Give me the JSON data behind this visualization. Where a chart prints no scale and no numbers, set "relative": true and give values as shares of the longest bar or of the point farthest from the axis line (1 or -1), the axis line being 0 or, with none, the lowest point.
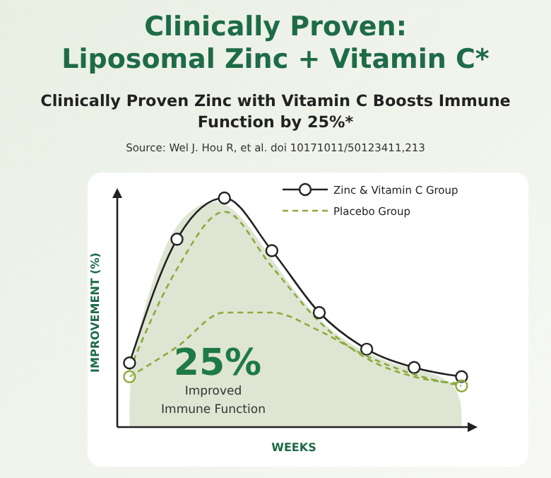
{
  "chart_data": {
    "type": "line",
    "title": "Clinically Proven:\nLiposomal Zinc + Vitamin C*",
    "subtitle": "Clinically Proven Zinc with Vitamin C Boosts Immune\nFunction by 25%*",
    "xlabel": "WEEKS",
    "ylabel": "IMPROVEMENT (%)",
    "relative": true,
    "legend": "top right",
    "categories": [
      null,
      null,
      null,
      null,
      null,
      null,
      null,
      null
    ],
    "annotations": [
      "Source: Wel J. Hou R, et al. doi 10171011/50123411,213",
      "25%",
      "Improved\nImmune Function"
    ],
    "series": [
      {
        "color": "#8aab3a",
        "line_style": "dashed",
        "marker": "none",
        "values": [
          0.25,
          0.69,
          0.94,
          0.7,
          0.46,
          0.3,
          0.22,
          0.19
        ]
      },
      {
        "name": "Zinc & Vitamin C Group",
        "color": "#222222",
        "line_style": "solid",
        "marker": "circle",
        "values": [
          0.28,
          0.82,
          1.0,
          0.77,
          0.5,
          0.34,
          0.26,
          0.22
        ]
      },
      {
        "name": "Placebo Group",
        "color": "#8aab3a",
        "line_style": "dashed",
        "marker": "none",
        "values": [
          0.22,
          0.35,
          0.5,
          0.5,
          0.42,
          0.31,
          0.23,
          0.18
        ]
      }
    ]
  }
}
